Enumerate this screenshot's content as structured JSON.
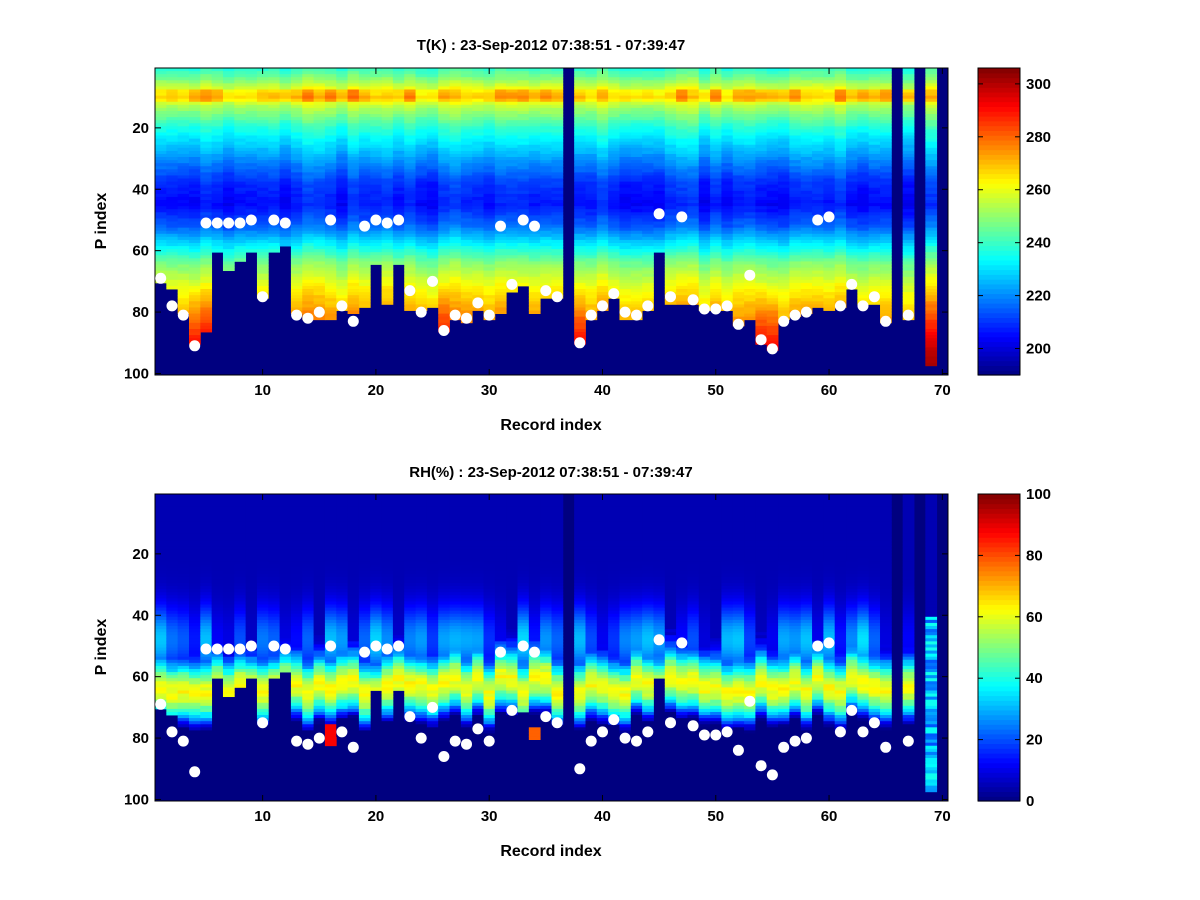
{
  "chart_data": [
    {
      "type": "heatmap",
      "title": "T(K) : 23-Sep-2012 07:38:51 - 07:39:47",
      "xlabel": "Record index",
      "ylabel": "P index",
      "xlim": [
        1,
        71
      ],
      "ylim": [
        1,
        100
      ],
      "y_reversed": true,
      "xticks": [
        10,
        20,
        30,
        40,
        50,
        60,
        70
      ],
      "yticks": [
        20,
        40,
        60,
        80,
        100
      ],
      "colorbar": {
        "min": 190,
        "max": 306,
        "ticks": [
          200,
          220,
          240,
          260,
          280,
          300
        ]
      },
      "cloud_markers": [
        [
          1,
          69
        ],
        [
          2,
          78
        ],
        [
          3,
          81
        ],
        [
          4,
          91
        ],
        [
          5,
          51
        ],
        [
          6,
          51
        ],
        [
          7,
          51
        ],
        [
          8,
          51
        ],
        [
          9,
          50
        ],
        [
          10,
          75
        ],
        [
          11,
          50
        ],
        [
          12,
          51
        ],
        [
          13,
          81
        ],
        [
          14,
          82
        ],
        [
          15,
          80
        ],
        [
          16,
          50
        ],
        [
          17,
          78
        ],
        [
          18,
          83
        ],
        [
          19,
          52
        ],
        [
          20,
          50
        ],
        [
          21,
          51
        ],
        [
          22,
          50
        ],
        [
          23,
          73
        ],
        [
          24,
          80
        ],
        [
          25,
          70
        ],
        [
          26,
          86
        ],
        [
          27,
          81
        ],
        [
          28,
          82
        ],
        [
          29,
          77
        ],
        [
          30,
          81
        ],
        [
          31,
          52
        ],
        [
          32,
          71
        ],
        [
          33,
          50
        ],
        [
          34,
          52
        ],
        [
          35,
          73
        ],
        [
          36,
          75
        ],
        [
          38,
          90
        ],
        [
          39,
          81
        ],
        [
          40,
          78
        ],
        [
          41,
          74
        ],
        [
          42,
          80
        ],
        [
          43,
          81
        ],
        [
          44,
          78
        ],
        [
          45,
          48
        ],
        [
          46,
          75
        ],
        [
          47,
          49
        ],
        [
          48,
          76
        ],
        [
          49,
          79
        ],
        [
          50,
          79
        ],
        [
          51,
          78
        ],
        [
          52,
          84
        ],
        [
          53,
          68
        ],
        [
          54,
          89
        ],
        [
          55,
          92
        ],
        [
          56,
          83
        ],
        [
          57,
          81
        ],
        [
          58,
          80
        ],
        [
          59,
          50
        ],
        [
          60,
          49
        ],
        [
          61,
          78
        ],
        [
          62,
          71
        ],
        [
          63,
          78
        ],
        [
          64,
          75
        ],
        [
          65,
          83
        ],
        [
          67,
          81
        ]
      ]
    },
    {
      "type": "heatmap",
      "title": "RH(%) : 23-Sep-2012 07:38:51 - 07:39:47",
      "xlabel": "Record index",
      "ylabel": "P index",
      "xlim": [
        1,
        71
      ],
      "ylim": [
        1,
        100
      ],
      "y_reversed": true,
      "xticks": [
        10,
        20,
        30,
        40,
        50,
        60,
        70
      ],
      "yticks": [
        20,
        40,
        60,
        80,
        100
      ],
      "colorbar": {
        "min": 0,
        "max": 100,
        "ticks": [
          0,
          20,
          40,
          60,
          80,
          100
        ]
      },
      "cloud_markers": [
        [
          1,
          69
        ],
        [
          2,
          78
        ],
        [
          3,
          81
        ],
        [
          4,
          91
        ],
        [
          5,
          51
        ],
        [
          6,
          51
        ],
        [
          7,
          51
        ],
        [
          8,
          51
        ],
        [
          9,
          50
        ],
        [
          10,
          75
        ],
        [
          11,
          50
        ],
        [
          12,
          51
        ],
        [
          13,
          81
        ],
        [
          14,
          82
        ],
        [
          15,
          80
        ],
        [
          16,
          50
        ],
        [
          17,
          78
        ],
        [
          18,
          83
        ],
        [
          19,
          52
        ],
        [
          20,
          50
        ],
        [
          21,
          51
        ],
        [
          22,
          50
        ],
        [
          23,
          73
        ],
        [
          24,
          80
        ],
        [
          25,
          70
        ],
        [
          26,
          86
        ],
        [
          27,
          81
        ],
        [
          28,
          82
        ],
        [
          29,
          77
        ],
        [
          30,
          81
        ],
        [
          31,
          52
        ],
        [
          32,
          71
        ],
        [
          33,
          50
        ],
        [
          34,
          52
        ],
        [
          35,
          73
        ],
        [
          36,
          75
        ],
        [
          38,
          90
        ],
        [
          39,
          81
        ],
        [
          40,
          78
        ],
        [
          41,
          74
        ],
        [
          42,
          80
        ],
        [
          43,
          81
        ],
        [
          44,
          78
        ],
        [
          45,
          48
        ],
        [
          46,
          75
        ],
        [
          47,
          49
        ],
        [
          48,
          76
        ],
        [
          49,
          79
        ],
        [
          50,
          79
        ],
        [
          51,
          78
        ],
        [
          52,
          84
        ],
        [
          53,
          68
        ],
        [
          54,
          89
        ],
        [
          55,
          92
        ],
        [
          56,
          83
        ],
        [
          57,
          81
        ],
        [
          58,
          80
        ],
        [
          59,
          50
        ],
        [
          60,
          49
        ],
        [
          61,
          78
        ],
        [
          62,
          71
        ],
        [
          63,
          78
        ],
        [
          64,
          75
        ],
        [
          65,
          83
        ],
        [
          67,
          81
        ]
      ]
    }
  ],
  "column_bottoms": [
    70,
    72,
    80,
    90,
    86,
    60,
    66,
    63,
    60,
    75,
    60,
    58,
    80,
    82,
    82,
    82,
    79,
    80,
    78,
    64,
    77,
    64,
    79,
    79,
    78,
    86,
    82,
    83,
    79,
    82,
    80,
    73,
    71,
    80,
    75,
    75,
    0,
    90,
    82,
    79,
    75,
    82,
    82,
    79,
    60,
    77,
    77,
    77,
    79,
    79,
    79,
    84,
    82,
    90,
    92,
    82,
    81,
    80,
    78,
    79,
    78,
    72,
    77,
    77,
    83,
    0,
    82,
    0,
    97,
    0
  ]
}
